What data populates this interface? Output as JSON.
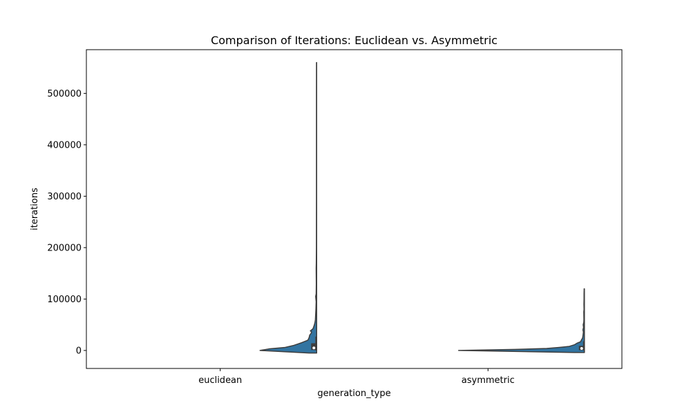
{
  "chart_data": {
    "type": "violin",
    "title": "Comparison of Iterations: Euclidean vs. Asymmetric",
    "xlabel": "generation_type",
    "ylabel": "iterations",
    "categories": [
      "euclidean",
      "asymmetric"
    ],
    "ylim": [
      -35000,
      585000
    ],
    "yticks": [
      0,
      100000,
      200000,
      300000,
      400000,
      500000
    ],
    "ytick_labels": [
      "0",
      "100000",
      "200000",
      "300000",
      "400000",
      "500000"
    ],
    "violin_color": "#3274a1",
    "edge_color": "#3d3d3d",
    "split": true,
    "series": [
      {
        "category": "euclidean",
        "min": -5000,
        "max": 560000,
        "quartiles": [
          1000,
          5000,
          14000
        ],
        "whisker": [
          0,
          27000
        ],
        "density_profile": [
          [
            -5000,
            0.06
          ],
          [
            0,
            0.45
          ],
          [
            3000,
            0.38
          ],
          [
            6000,
            0.25
          ],
          [
            10000,
            0.18
          ],
          [
            15000,
            0.12
          ],
          [
            20000,
            0.07
          ],
          [
            25000,
            0.06
          ],
          [
            30000,
            0.055
          ],
          [
            33000,
            0.045
          ],
          [
            36000,
            0.04
          ],
          [
            38000,
            0.05
          ],
          [
            42000,
            0.03
          ],
          [
            45000,
            0.025
          ],
          [
            50000,
            0.018
          ],
          [
            55000,
            0.013
          ],
          [
            60000,
            0.01
          ],
          [
            80000,
            0.006
          ],
          [
            95000,
            0.004
          ],
          [
            105000,
            0.008
          ],
          [
            110000,
            0.004
          ],
          [
            130000,
            0.003
          ],
          [
            160000,
            0.004
          ],
          [
            170000,
            0.003
          ],
          [
            200000,
            0.002
          ],
          [
            300000,
            0.0015
          ],
          [
            400000,
            0.0015
          ],
          [
            500000,
            0.0015
          ],
          [
            560000,
            0.0012
          ]
        ]
      },
      {
        "category": "asymmetric",
        "min": -4000,
        "max": 120000,
        "quartiles": [
          500,
          4000,
          9000
        ],
        "whisker": [
          0,
          18000
        ],
        "density_profile": [
          [
            -4000,
            0.08
          ],
          [
            0,
            1.0
          ],
          [
            2000,
            0.55
          ],
          [
            4000,
            0.3
          ],
          [
            6000,
            0.2
          ],
          [
            8000,
            0.12
          ],
          [
            11000,
            0.08
          ],
          [
            14000,
            0.06
          ],
          [
            17000,
            0.03
          ],
          [
            20000,
            0.025
          ],
          [
            24000,
            0.015
          ],
          [
            28000,
            0.012
          ],
          [
            32000,
            0.01
          ],
          [
            36000,
            0.008
          ],
          [
            40000,
            0.012
          ],
          [
            45000,
            0.007
          ],
          [
            50000,
            0.01
          ],
          [
            55000,
            0.005
          ],
          [
            60000,
            0.004
          ],
          [
            75000,
            0.005
          ],
          [
            80000,
            0.003
          ],
          [
            90000,
            0.004
          ],
          [
            100000,
            0.003
          ],
          [
            110000,
            0.003
          ],
          [
            120000,
            0.002
          ]
        ]
      }
    ]
  }
}
